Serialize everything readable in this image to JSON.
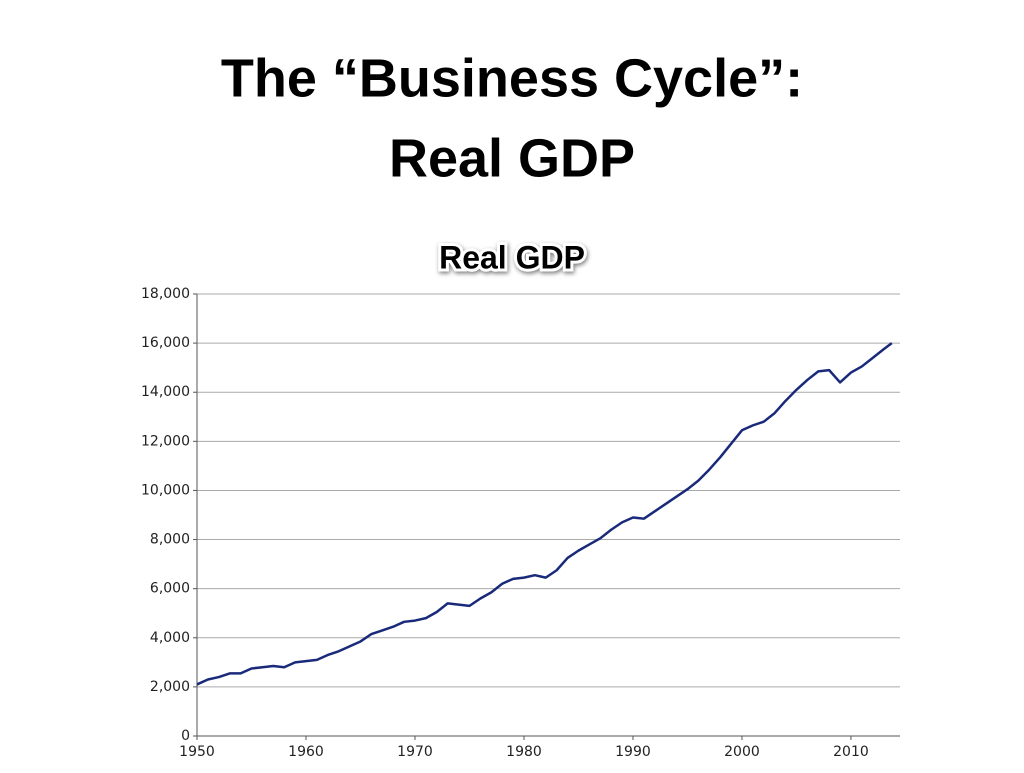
{
  "slide_title": [
    "The “Business Cycle”:",
    "Real GDP"
  ],
  "chart_data": {
    "type": "line",
    "title": "Real GDP",
    "x": [
      1950,
      1951,
      1952,
      1953,
      1954,
      1955,
      1956,
      1957,
      1958,
      1959,
      1960,
      1961,
      1962,
      1963,
      1964,
      1965,
      1966,
      1967,
      1968,
      1969,
      1970,
      1971,
      1972,
      1973,
      1974,
      1975,
      1976,
      1977,
      1978,
      1979,
      1980,
      1981,
      1982,
      1983,
      1984,
      1985,
      1986,
      1987,
      1988,
      1989,
      1990,
      1991,
      1992,
      1993,
      1994,
      1995,
      1996,
      1997,
      1998,
      1999,
      2000,
      2001,
      2002,
      2003,
      2004,
      2005,
      2006,
      2007,
      2008,
      2009,
      2010,
      2011,
      2012,
      2013,
      2013.75
    ],
    "values": [
      2100,
      2300,
      2400,
      2550,
      2550,
      2750,
      2800,
      2850,
      2800,
      3000,
      3050,
      3100,
      3300,
      3450,
      3650,
      3850,
      4150,
      4300,
      4450,
      4650,
      4700,
      4800,
      5050,
      5400,
      5350,
      5300,
      5600,
      5850,
      6200,
      6400,
      6450,
      6550,
      6450,
      6750,
      7250,
      7550,
      7800,
      8050,
      8400,
      8700,
      8900,
      8850,
      9150,
      9450,
      9750,
      10050,
      10400,
      10850,
      11350,
      11900,
      12450,
      12650,
      12800,
      13150,
      13650,
      14100,
      14500,
      14850,
      14900,
      14400,
      14800,
      15050,
      15400,
      15750,
      16000
    ],
    "color": "#1a2a7a",
    "xlim": [
      1950,
      2014.5
    ],
    "xticks": [
      1950,
      1960,
      1970,
      1980,
      1990,
      2000,
      2010
    ],
    "ylim": [
      0,
      18000
    ],
    "yticks": [
      0,
      {
        "value": 2000,
        "label": "2,000"
      },
      {
        "value": 4000,
        "label": "4,000"
      },
      {
        "value": 6000,
        "label": "6,000"
      },
      {
        "value": 8000,
        "label": "8,000"
      },
      {
        "value": 10000,
        "label": "10,000"
      },
      {
        "value": 12000,
        "label": "12,000"
      },
      {
        "value": 14000,
        "label": "14,000"
      },
      {
        "value": 16000,
        "label": "16,000"
      },
      {
        "value": 18000,
        "label": "18,000"
      }
    ],
    "grid": true
  }
}
